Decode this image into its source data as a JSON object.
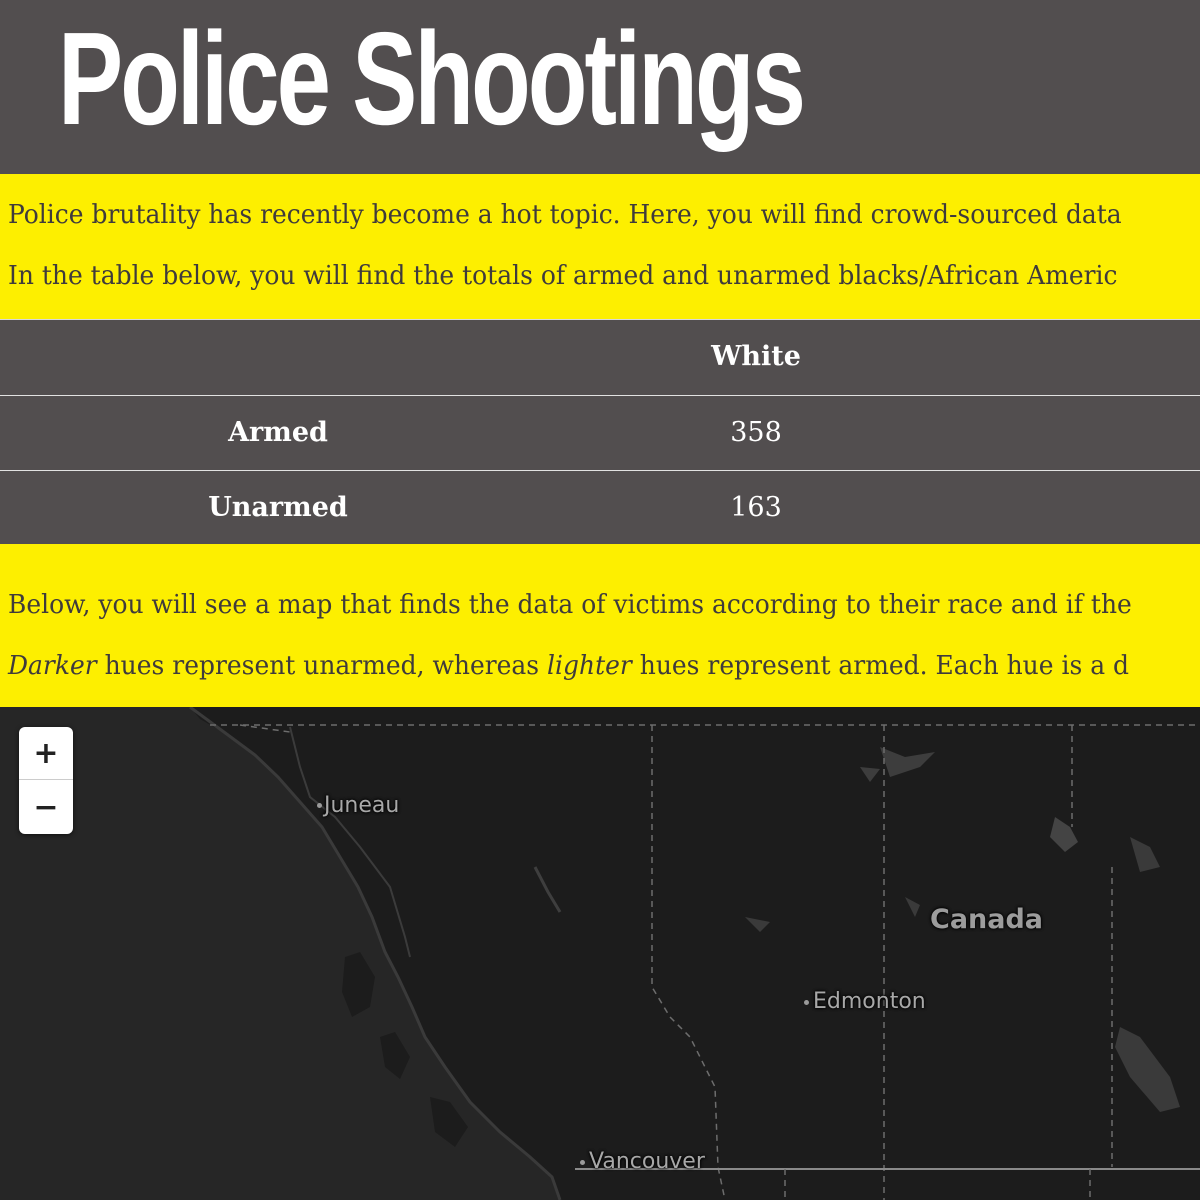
{
  "page": {
    "title": "Police Shootings"
  },
  "intro": {
    "line1": "Police brutality has recently become a hot topic. Here, you will find crowd-sourced data",
    "line2": "In the table below, you will find the totals of armed and unarmed blacks/African Americ"
  },
  "table": {
    "header": [
      "",
      "White"
    ],
    "rows": [
      {
        "label": "Armed",
        "white": "358"
      },
      {
        "label": "Unarmed",
        "white": "163"
      }
    ]
  },
  "outro": {
    "line1": "Below, you will see a map that finds the data of victims according to their race and if the",
    "line2_em1": "Darker",
    "line2_mid": " hues represent unarmed, whereas ",
    "line2_em2": "lighter",
    "line2_end": " hues represent armed. Each hue is a d"
  },
  "map": {
    "zoom_in": "+",
    "zoom_out": "−",
    "labels": {
      "juneau": "Juneau",
      "canada": "Canada",
      "edmonton": "Edmonton",
      "vancouver": "Vancouver"
    }
  }
}
